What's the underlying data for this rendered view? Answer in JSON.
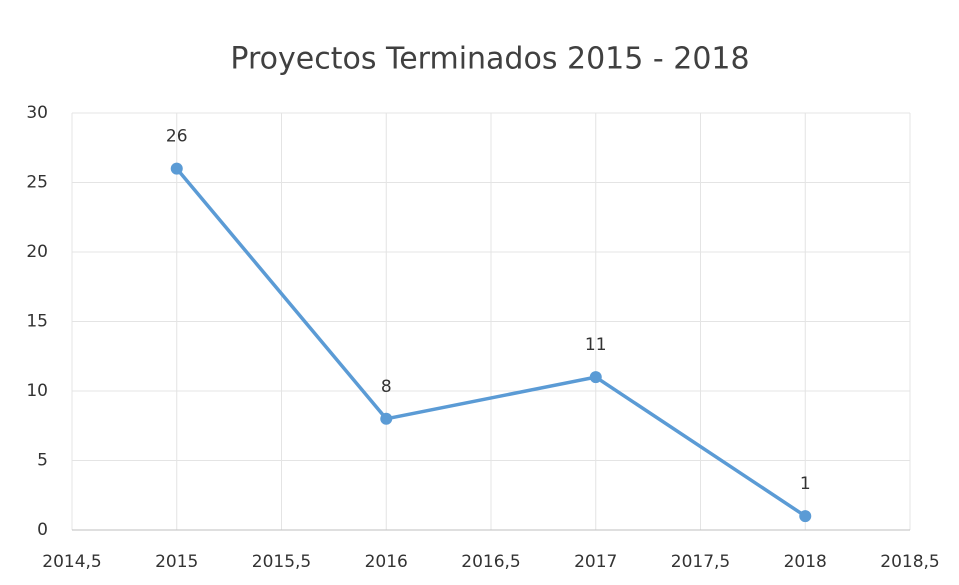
{
  "chart_data": {
    "type": "line",
    "title": "Proyectos Terminados 2015 - 2018",
    "x": [
      2015,
      2016,
      2017,
      2018
    ],
    "values": [
      26,
      8,
      11,
      1
    ],
    "color": "#5b9bd5",
    "xlim": [
      2014.5,
      2018.5
    ],
    "xticks": [
      {
        "value": 2014.5,
        "label": "2014,5"
      },
      2015,
      {
        "value": 2015.5,
        "label": "2015,5"
      },
      2016,
      {
        "value": 2016.5,
        "label": "2016,5"
      },
      2017,
      {
        "value": 2017.5,
        "label": "2017,5"
      },
      2018,
      {
        "value": 2018.5,
        "label": "2018,5"
      }
    ],
    "ylim": [
      0,
      30
    ],
    "yticks": [
      0,
      5,
      10,
      15,
      20,
      25,
      30
    ],
    "grid": true
  }
}
